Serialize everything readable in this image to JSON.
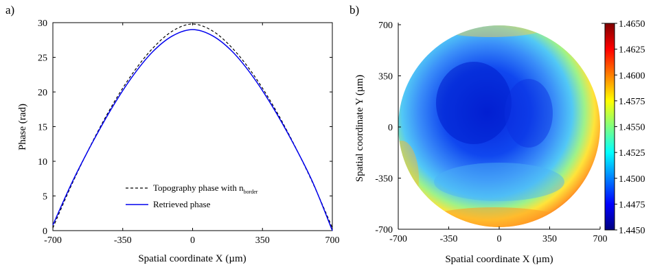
{
  "panel_labels": [
    "a)",
    "b)"
  ],
  "chart_data": [
    {
      "type": "line",
      "panel": "a)",
      "xlabel": "Spatial coordinate X (µm)",
      "ylabel": "Phase (rad)",
      "xlim": [
        -700,
        700
      ],
      "ylim": [
        0,
        30
      ],
      "xticks": [
        -700,
        -350,
        0,
        350,
        700
      ],
      "yticks": [
        0,
        5,
        10,
        15,
        20,
        25,
        30
      ],
      "legend_position": "lower-center",
      "series": [
        {
          "name": "Topography phase with n",
          "name_subscript": "border",
          "style": "dashed",
          "color": "#000000",
          "x": [
            -700,
            -600,
            -500,
            -400,
            -300,
            -200,
            -100,
            0,
            100,
            200,
            300,
            400,
            500,
            600,
            700
          ],
          "y": [
            0.4,
            7.0,
            12.9,
            18.2,
            22.7,
            26.3,
            28.8,
            29.8,
            28.8,
            26.3,
            22.7,
            18.2,
            12.9,
            7.0,
            0.4
          ]
        },
        {
          "name": "Retrieved phase",
          "style": "solid",
          "color": "#0000ee",
          "x": [
            -700,
            -600,
            -500,
            -400,
            -300,
            -200,
            -100,
            0,
            100,
            200,
            300,
            400,
            500,
            600,
            700
          ],
          "y": [
            0.8,
            7.2,
            12.8,
            17.9,
            22.3,
            25.8,
            28.1,
            29.0,
            28.1,
            25.8,
            22.3,
            17.9,
            12.8,
            7.1,
            0.0
          ]
        }
      ]
    },
    {
      "type": "heatmap",
      "panel": "b)",
      "xlabel": "Spatial coordinate X (µm)",
      "ylabel": "Spatial coordinate Y (µm)",
      "xlim": [
        -700,
        700
      ],
      "ylim": [
        -700,
        700
      ],
      "xticks": [
        -700,
        -350,
        0,
        350,
        700
      ],
      "yticks": [
        -700,
        -350,
        0,
        350,
        700
      ],
      "region": "circular aperture, radius 700 µm",
      "colorscale": "jet",
      "colorbar_range": [
        1.445,
        1.465
      ],
      "colorbar_ticks": [
        "1.4450",
        "1.4475",
        "1.4500",
        "1.4525",
        "1.4550",
        "1.4575",
        "1.4600",
        "1.4625",
        "1.4650"
      ],
      "center_value_approx": 1.4468,
      "edge_value_approx": 1.4605
    }
  ]
}
